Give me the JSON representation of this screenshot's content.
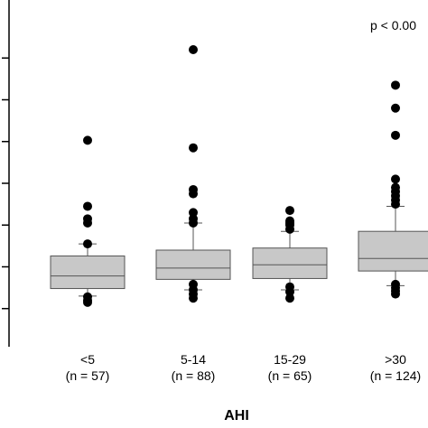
{
  "chart_data": {
    "type": "box",
    "title": "",
    "xlabel": "AHI",
    "ylabel": "",
    "annotation": "p < 0.00",
    "ylim": [
      0,
      8
    ],
    "y_ticks": [
      1,
      2,
      3,
      4,
      5,
      6,
      7
    ],
    "y_tick_labels_visible": false,
    "grid": false,
    "categories": [
      {
        "label": "<5",
        "n_label": "(n = 57)"
      },
      {
        "label": "5-14",
        "n_label": "(n = 88)"
      },
      {
        "label": "15-29",
        "n_label": "(n = 65)"
      },
      {
        "label": ">30",
        "n_label": "(n = 124)"
      }
    ],
    "series": [
      {
        "q1": 1.48,
        "median": 1.78,
        "q3": 2.26,
        "whisker_low": 1.3,
        "whisker_high": 2.55,
        "outliers": [
          1.15,
          1.2,
          1.28,
          2.55,
          3.05,
          3.15,
          3.45,
          5.03
        ]
      },
      {
        "q1": 1.7,
        "median": 1.97,
        "q3": 2.4,
        "whisker_low": 1.45,
        "whisker_high": 3.05,
        "outliers": [
          1.25,
          1.35,
          1.45,
          1.58,
          3.05,
          3.15,
          3.3,
          3.75,
          3.85,
          4.85,
          7.2
        ]
      },
      {
        "q1": 1.72,
        "median": 2.05,
        "q3": 2.45,
        "whisker_low": 1.45,
        "whisker_high": 2.85,
        "outliers": [
          1.25,
          1.4,
          1.52,
          2.9,
          3.0,
          3.05,
          3.1,
          3.35
        ]
      },
      {
        "q1": 1.9,
        "median": 2.2,
        "q3": 2.85,
        "whisker_low": 1.55,
        "whisker_high": 3.45,
        "outliers": [
          1.35,
          1.42,
          1.5,
          1.58,
          3.5,
          3.6,
          3.7,
          3.8,
          3.9,
          4.1,
          5.15,
          5.8,
          6.35
        ]
      }
    ],
    "colors": {
      "box_fill": "#c8c8c8",
      "outline": "#555555",
      "point": "#000000",
      "axis": "#000000"
    }
  }
}
